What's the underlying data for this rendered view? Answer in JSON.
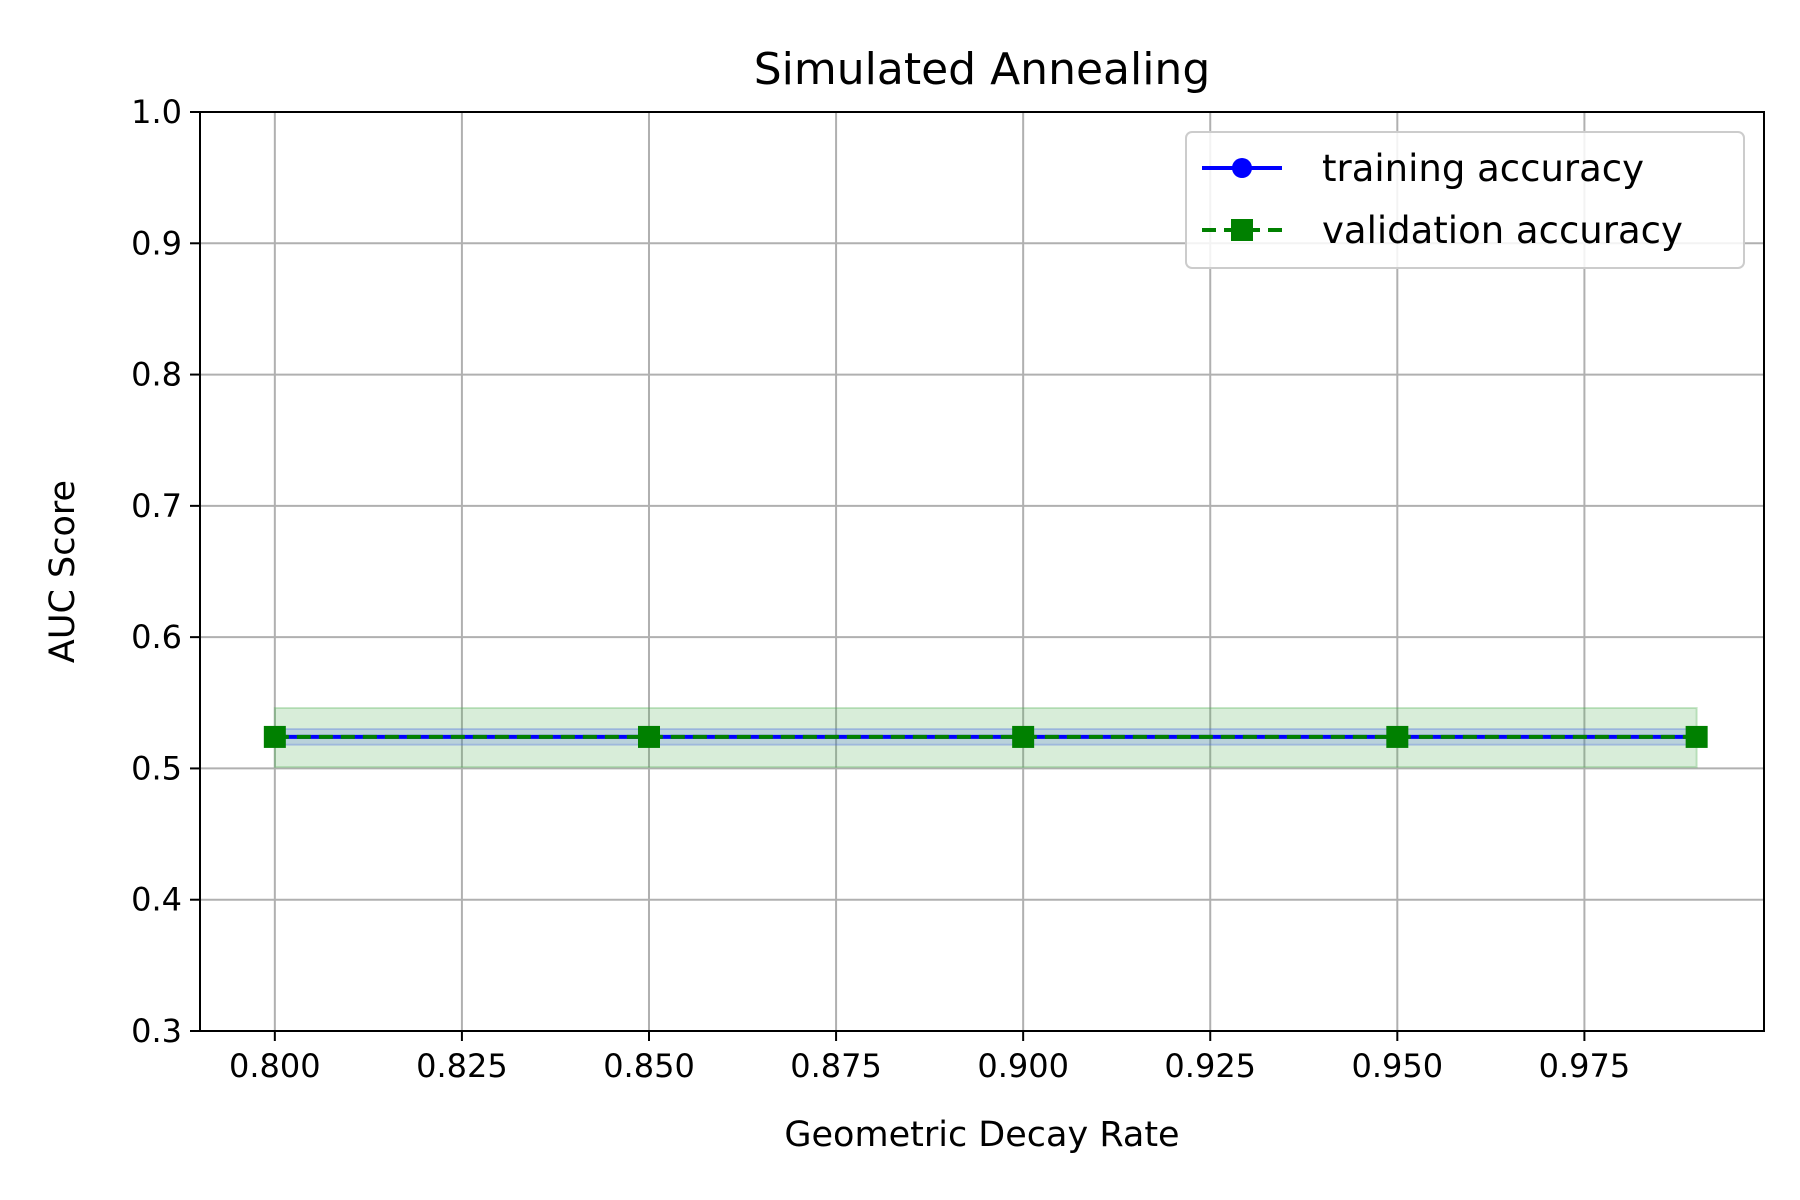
{
  "chart_data": {
    "type": "line",
    "title": "Simulated Annealing",
    "xlabel": "Geometric Decay Rate",
    "ylabel": "AUC Score",
    "xlim": [
      0.79,
      0.999
    ],
    "ylim": [
      0.3,
      1.0
    ],
    "x_ticks": [
      "0.800",
      "0.825",
      "0.850",
      "0.875",
      "0.900",
      "0.925",
      "0.950",
      "0.975"
    ],
    "y_ticks": [
      "0.3",
      "0.4",
      "0.5",
      "0.6",
      "0.7",
      "0.8",
      "0.9",
      "1.0"
    ],
    "grid": true,
    "legend_position": "top-right",
    "x": [
      0.8,
      0.85,
      0.9,
      0.95,
      0.99
    ],
    "series": [
      {
        "name": "training accuracy",
        "values": [
          0.524,
          0.524,
          0.524,
          0.524,
          0.524
        ],
        "band": [
          [
            0.518,
            0.53
          ],
          [
            0.518,
            0.53
          ],
          [
            0.518,
            0.53
          ],
          [
            0.518,
            0.53
          ],
          [
            0.518,
            0.53
          ]
        ],
        "color": "#0000ff",
        "band_color": "#4f6fe0",
        "line_style": "solid",
        "marker": "circle"
      },
      {
        "name": "validation accuracy",
        "values": [
          0.524,
          0.524,
          0.524,
          0.524,
          0.524
        ],
        "band": [
          [
            0.501,
            0.546
          ],
          [
            0.501,
            0.546
          ],
          [
            0.501,
            0.546
          ],
          [
            0.501,
            0.546
          ],
          [
            0.501,
            0.546
          ]
        ],
        "color": "#008000",
        "band_color": "#4caf50",
        "line_style": "dashed",
        "marker": "square"
      }
    ]
  }
}
